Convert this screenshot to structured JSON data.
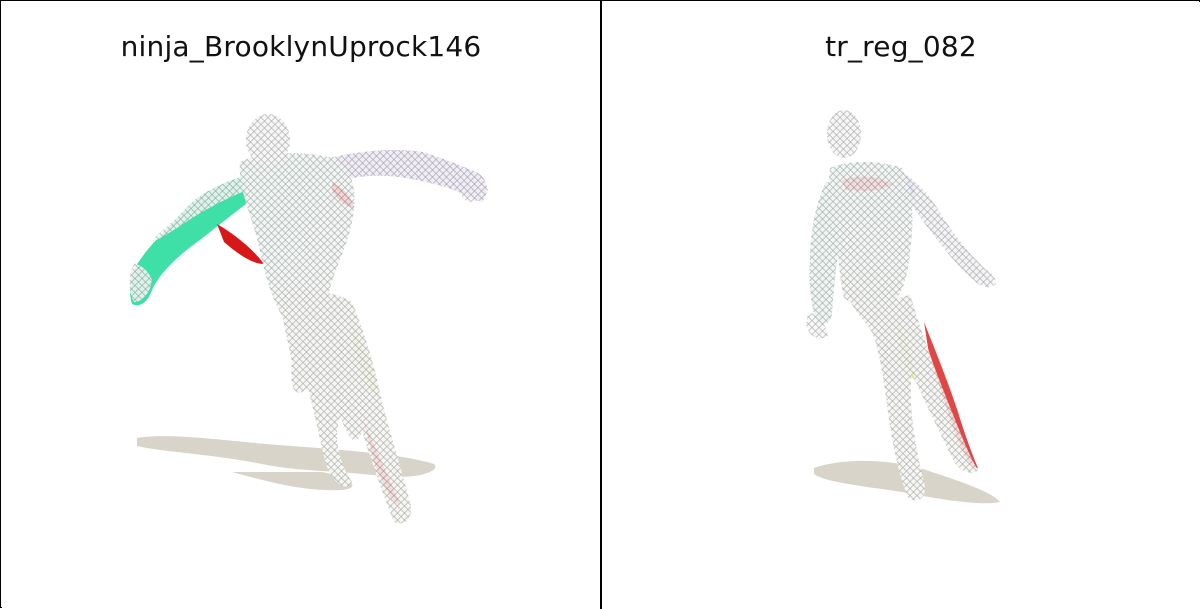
{
  "panels": [
    {
      "title": "ninja_BrooklynUprock146",
      "icon": "human-mesh-figure"
    },
    {
      "title": "tr_reg_082",
      "icon": "human-mesh-figure"
    }
  ],
  "colors": {
    "background": "#ffffff",
    "border": "#000000",
    "shadow": "#d8d4ca",
    "mesh_wire": "#9a9a9a",
    "accent_green": "#3fe0a8",
    "accent_red": "#d81818",
    "accent_violet": "#c9b7f0"
  }
}
